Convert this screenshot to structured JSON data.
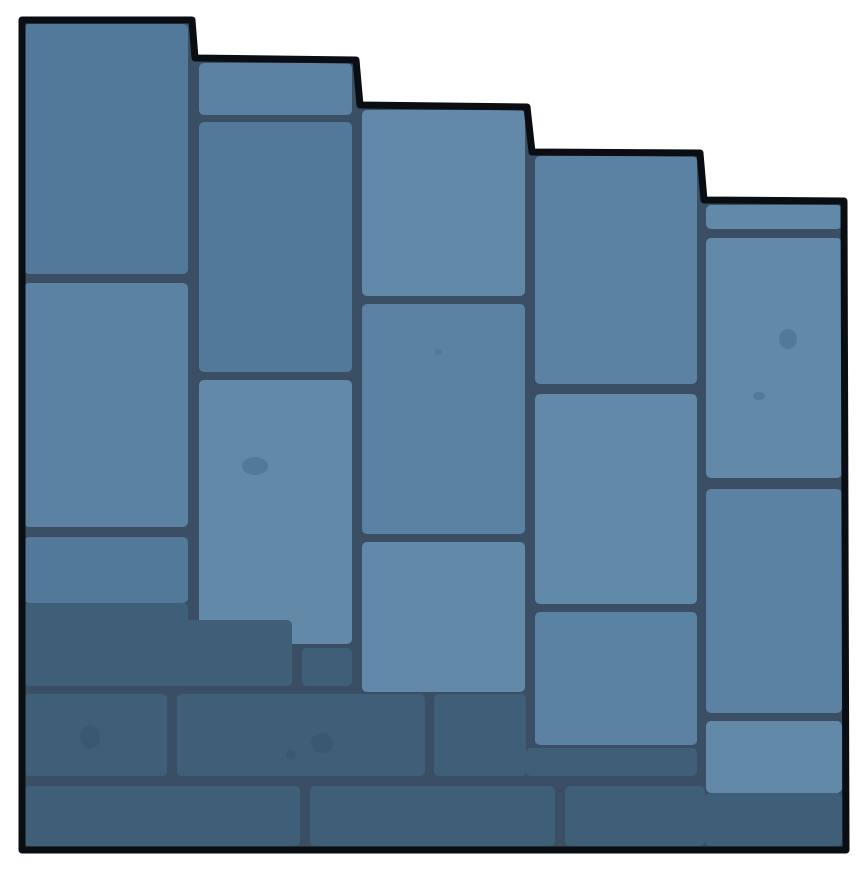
{
  "scene": {
    "type": "stone-brick-staircase-tile",
    "column_count": 5,
    "colors": {
      "background": "#ffffff",
      "outline": "#0a0d12",
      "mortar": "#3a4f63",
      "brick_light": "#6389a8",
      "brick_mid": "#5b82a2",
      "brick_base": "#52799a",
      "shadow": "#3f5f79",
      "shadow_dark": "#3a586f",
      "speckle": "#4a6f8f"
    }
  }
}
